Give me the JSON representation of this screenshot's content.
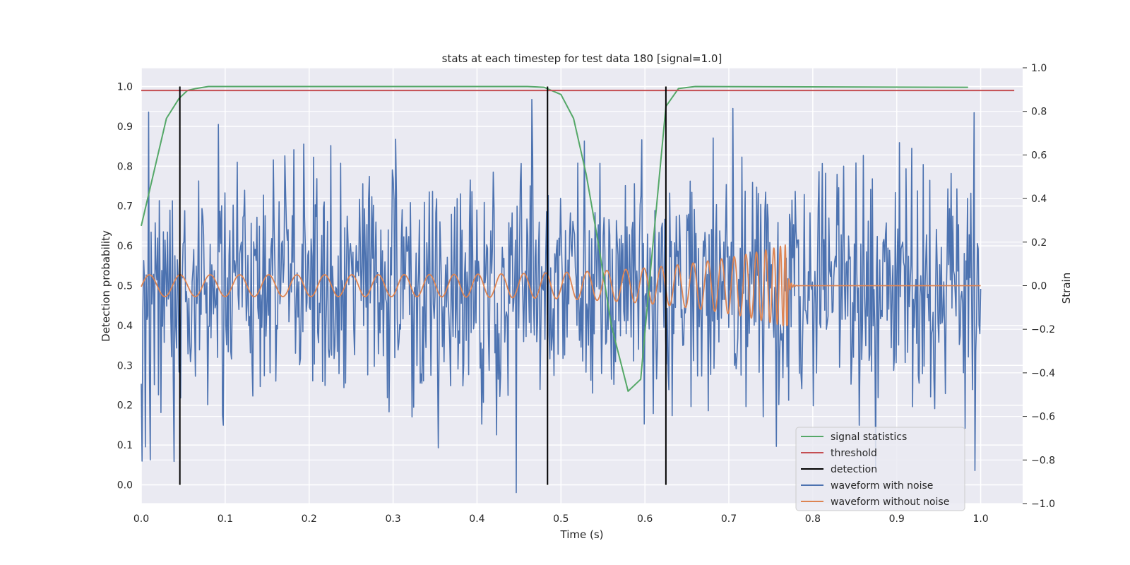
{
  "chart_data": {
    "type": "line",
    "title": "stats at each timestep for test data 180 [signal=1.0]",
    "xlabel": "Time (s)",
    "ylabel_left": "Detection probability",
    "ylabel_right": "Strain",
    "xlim": [
      0.0,
      1.05
    ],
    "ylim_left": [
      -0.047,
      1.047
    ],
    "ylim_right": [
      -1.0,
      1.0
    ],
    "xticks": [
      "0.0",
      "0.1",
      "0.2",
      "0.3",
      "0.4",
      "0.5",
      "0.6",
      "0.7",
      "0.8",
      "0.9",
      "1.0"
    ],
    "yticks_left": [
      "0.0",
      "0.1",
      "0.2",
      "0.3",
      "0.4",
      "0.5",
      "0.6",
      "0.7",
      "0.8",
      "0.9",
      "1.0"
    ],
    "yticks_right": [
      "−1.0",
      "−0.8",
      "−0.6",
      "−0.4",
      "−0.2",
      "0.0",
      "0.2",
      "0.4",
      "0.6",
      "0.8",
      "1.0"
    ],
    "grid": true,
    "legend_position": "lower-right",
    "series": [
      {
        "name": "signal statistics",
        "color": "#55a868",
        "axis": "left",
        "x": [
          0.0,
          0.03,
          0.045,
          0.055,
          0.065,
          0.08,
          0.1,
          0.46,
          0.48,
          0.5,
          0.515,
          0.53,
          0.545,
          0.56,
          0.58,
          0.595,
          0.605,
          0.625,
          0.64,
          0.66,
          0.985
        ],
        "y": [
          0.65,
          0.92,
          0.97,
          0.99,
          0.995,
          1.0,
          1.0,
          1.0,
          0.998,
          0.98,
          0.92,
          0.78,
          0.6,
          0.4,
          0.235,
          0.265,
          0.5,
          0.95,
          0.995,
          1.0,
          0.998
        ]
      },
      {
        "name": "threshold",
        "color": "#c44e52",
        "axis": "left",
        "x": [
          0.0,
          1.04
        ],
        "y": [
          0.99,
          0.99
        ]
      },
      {
        "name": "detection",
        "color": "#000000",
        "axis": "left",
        "type": "vlines",
        "x": [
          0.046,
          0.484,
          0.625
        ],
        "ymin": 0.0,
        "ymax": 1.0
      },
      {
        "name": "waveform with noise",
        "color": "#4c72b0",
        "axis": "right",
        "x_range": [
          0.0,
          1.0
        ],
        "amplitude": 0.28,
        "clip": [
          -0.97,
          1.0
        ]
      },
      {
        "name": "waveform without noise",
        "color": "#dd8452",
        "axis": "right",
        "x_range": [
          0.0,
          1.0
        ],
        "chirp_end": 0.77,
        "amplitude_start": 0.05,
        "amplitude_end": 0.19
      }
    ]
  }
}
